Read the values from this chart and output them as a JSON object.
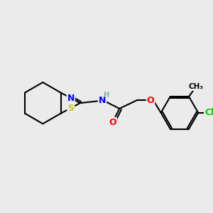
{
  "background_color": "#ebebeb",
  "bond_color": "#000000",
  "atom_colors": {
    "N": "#0000ff",
    "S": "#cccc00",
    "O": "#ff0000",
    "Cl": "#00cc00",
    "H": "#88aaaa",
    "C": "#000000"
  },
  "figsize": [
    3.0,
    3.0
  ],
  "dpi": 100
}
